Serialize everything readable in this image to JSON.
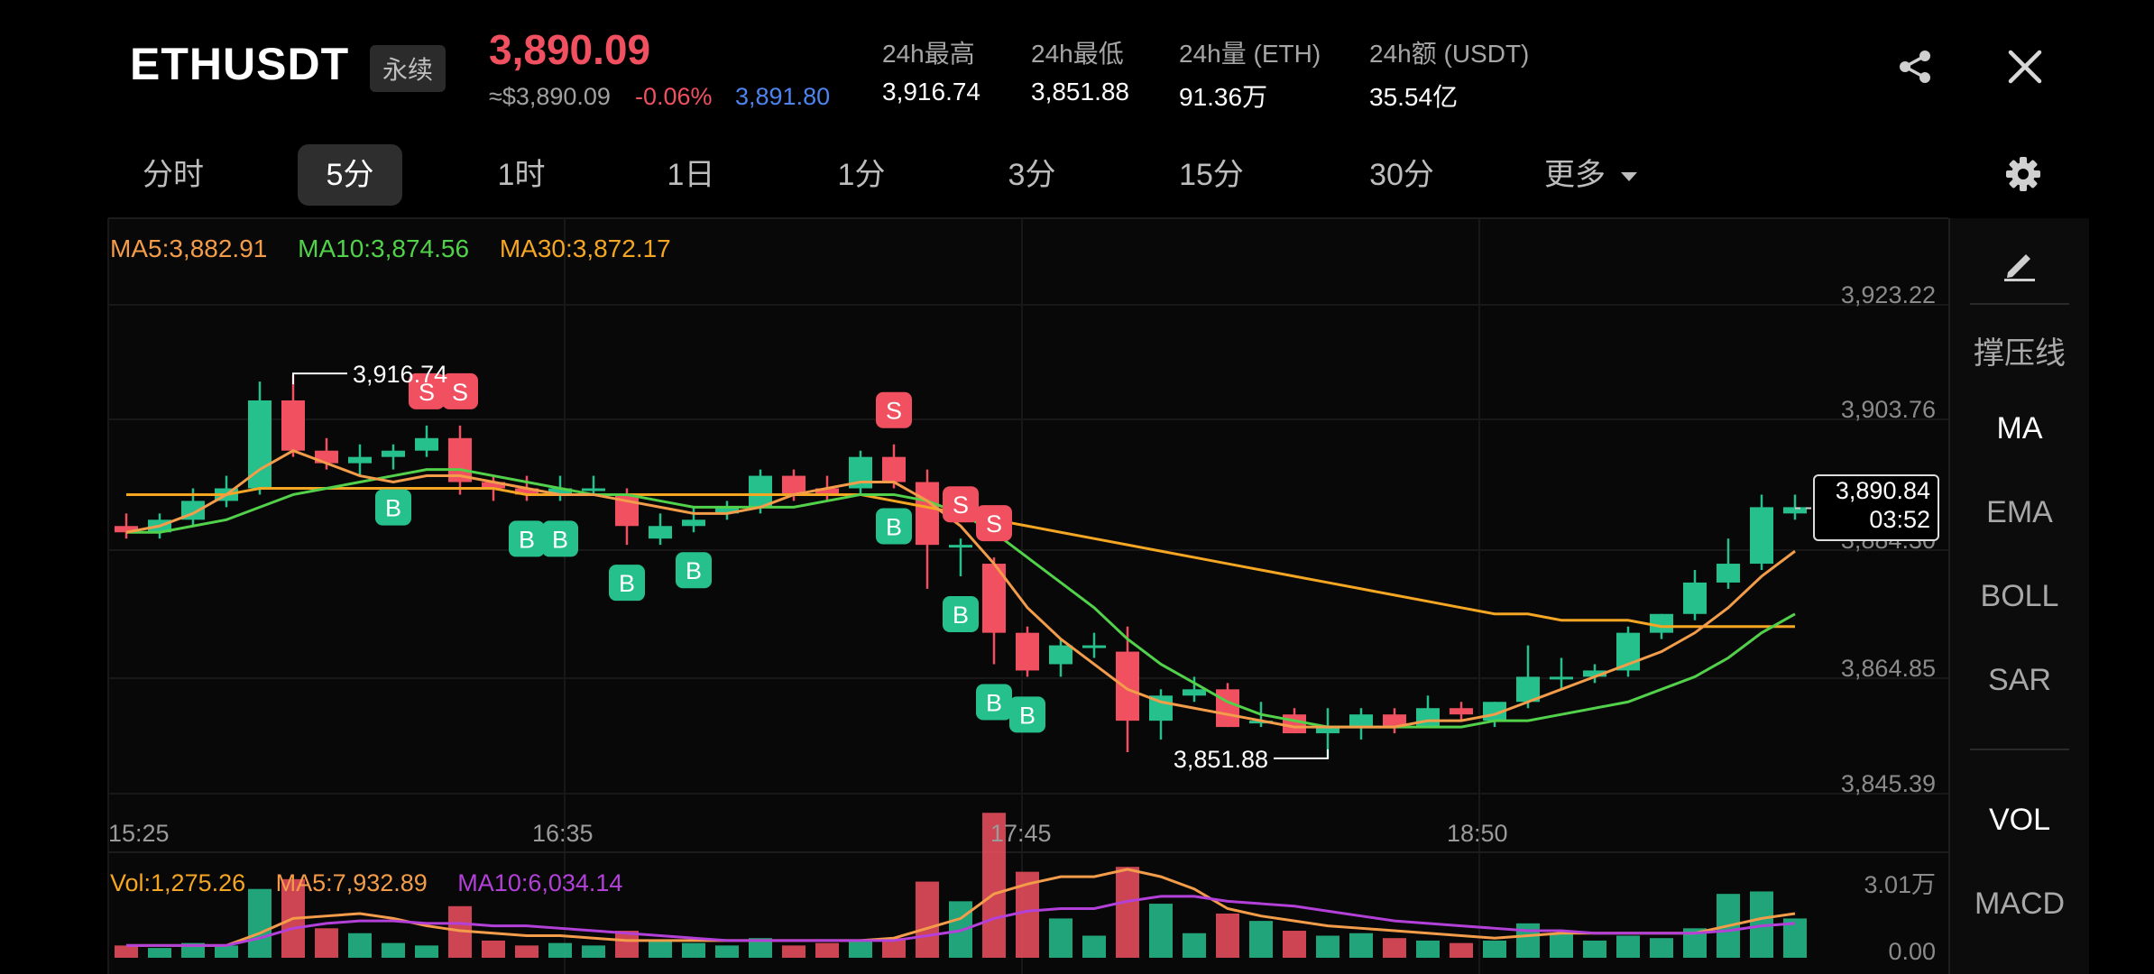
{
  "header": {
    "symbol": "ETHUSDT",
    "contract_type": "永续",
    "last_price": "3,890.09",
    "usd_equiv": "≈$3,890.09",
    "change_pct": "-0.06%",
    "mark_price": "3,891.80",
    "stats": [
      {
        "label": "24h最高",
        "value": "3,916.74"
      },
      {
        "label": "24h最低",
        "value": "3,851.88"
      },
      {
        "label": "24h量 (ETH)",
        "value": "91.36万"
      },
      {
        "label": "24h额 (USDT)",
        "value": "35.54亿"
      }
    ],
    "icons": {
      "share": "share-icon",
      "close": "close-icon"
    }
  },
  "timeframes": [
    {
      "label": "分时",
      "active": false
    },
    {
      "label": "5分",
      "active": true
    },
    {
      "label": "1时",
      "active": false
    },
    {
      "label": "1日",
      "active": false
    },
    {
      "label": "1分",
      "active": false
    },
    {
      "label": "3分",
      "active": false
    },
    {
      "label": "15分",
      "active": false
    },
    {
      "label": "30分",
      "active": false
    },
    {
      "label": "更多",
      "active": false
    }
  ],
  "indicators": {
    "ma5": "MA5:3,882.91",
    "ma10": "MA10:3,874.56",
    "ma30": "MA30:3,872.17",
    "vol": "Vol:1,275.26",
    "vol_ma5": "MA5:7,932.89",
    "vol_ma10": "MA10:6,034.14"
  },
  "side_panel": [
    "撑压线",
    "MA",
    "EMA",
    "BOLL",
    "SAR",
    "VOL",
    "MACD"
  ],
  "price_tag": {
    "price": "3,890.84",
    "countdown": "03:52"
  },
  "markers": {
    "high": "3,916.74",
    "low": "3,851.88",
    "buy": "B",
    "sell": "S"
  },
  "colors": {
    "up": "#26c08d",
    "down": "#f0505f",
    "ma5": "#f39c4a",
    "ma10": "#52d14a",
    "ma30": "#f5a623",
    "vol_ma10": "#b341d9"
  },
  "chart_data": {
    "type": "candlestick",
    "price_axis": {
      "min": 3845.39,
      "max": 3923.22,
      "ticks": [
        "3,923.22",
        "3,903.76",
        "3,884.30",
        "3,864.85",
        "3,845.39"
      ]
    },
    "time_axis": {
      "ticks": [
        "15:25",
        "16:35",
        "17:45",
        "18:50"
      ]
    },
    "volume_axis": {
      "ticks": [
        "3.01万",
        "0.00"
      ]
    },
    "candles": [
      {
        "o": 3888,
        "h": 3890,
        "l": 3886,
        "c": 3887
      },
      {
        "o": 3887,
        "h": 3890,
        "l": 3886,
        "c": 3889
      },
      {
        "o": 3889,
        "h": 3894,
        "l": 3888,
        "c": 3892
      },
      {
        "o": 3892,
        "h": 3896,
        "l": 3891,
        "c": 3894
      },
      {
        "o": 3894,
        "h": 3911,
        "l": 3893,
        "c": 3908
      },
      {
        "o": 3908,
        "h": 3912,
        "l": 3899,
        "c": 3900
      },
      {
        "o": 3900,
        "h": 3902,
        "l": 3897,
        "c": 3898
      },
      {
        "o": 3898,
        "h": 3901,
        "l": 3896,
        "c": 3899
      },
      {
        "o": 3899,
        "h": 3901,
        "l": 3897,
        "c": 3900
      },
      {
        "o": 3900,
        "h": 3904,
        "l": 3899,
        "c": 3902
      },
      {
        "o": 3902,
        "h": 3904,
        "l": 3893,
        "c": 3895
      },
      {
        "o": 3895,
        "h": 3896,
        "l": 3892,
        "c": 3894
      },
      {
        "o": 3894,
        "h": 3896,
        "l": 3892,
        "c": 3893
      },
      {
        "o": 3893,
        "h": 3896,
        "l": 3892,
        "c": 3894
      },
      {
        "o": 3894,
        "h": 3896,
        "l": 3893,
        "c": 3894
      },
      {
        "o": 3893,
        "h": 3894,
        "l": 3885,
        "c": 3888
      },
      {
        "o": 3886,
        "h": 3890,
        "l": 3885,
        "c": 3888
      },
      {
        "o": 3888,
        "h": 3891,
        "l": 3887,
        "c": 3889
      },
      {
        "o": 3890,
        "h": 3892,
        "l": 3889,
        "c": 3891
      },
      {
        "o": 3891,
        "h": 3897,
        "l": 3890,
        "c": 3896
      },
      {
        "o": 3896,
        "h": 3897,
        "l": 3892,
        "c": 3893
      },
      {
        "o": 3894,
        "h": 3896,
        "l": 3892,
        "c": 3893
      },
      {
        "o": 3894,
        "h": 3900,
        "l": 3893,
        "c": 3899
      },
      {
        "o": 3899,
        "h": 3901,
        "l": 3894,
        "c": 3895
      },
      {
        "o": 3895,
        "h": 3897,
        "l": 3878,
        "c": 3885
      },
      {
        "o": 3885,
        "h": 3886,
        "l": 3880,
        "c": 3885
      },
      {
        "o": 3882,
        "h": 3883,
        "l": 3866,
        "c": 3871
      },
      {
        "o": 3871,
        "h": 3872,
        "l": 3864,
        "c": 3865
      },
      {
        "o": 3866,
        "h": 3870,
        "l": 3864,
        "c": 3869
      },
      {
        "o": 3869,
        "h": 3871,
        "l": 3867,
        "c": 3869
      },
      {
        "o": 3868,
        "h": 3872,
        "l": 3852,
        "c": 3857
      },
      {
        "o": 3857,
        "h": 3862,
        "l": 3854,
        "c": 3861
      },
      {
        "o": 3861,
        "h": 3864,
        "l": 3860,
        "c": 3862
      },
      {
        "o": 3862,
        "h": 3863,
        "l": 3856,
        "c": 3856
      },
      {
        "o": 3857,
        "h": 3860,
        "l": 3856,
        "c": 3857
      },
      {
        "o": 3858,
        "h": 3859,
        "l": 3855,
        "c": 3855
      },
      {
        "o": 3855,
        "h": 3859,
        "l": 3851,
        "c": 3856
      },
      {
        "o": 3856,
        "h": 3859,
        "l": 3854,
        "c": 3858
      },
      {
        "o": 3858,
        "h": 3859,
        "l": 3855,
        "c": 3856
      },
      {
        "o": 3856,
        "h": 3861,
        "l": 3856,
        "c": 3859
      },
      {
        "o": 3859,
        "h": 3860,
        "l": 3857,
        "c": 3858
      },
      {
        "o": 3857,
        "h": 3860,
        "l": 3856,
        "c": 3860
      },
      {
        "o": 3860,
        "h": 3869,
        "l": 3859,
        "c": 3864
      },
      {
        "o": 3864,
        "h": 3867,
        "l": 3862,
        "c": 3864
      },
      {
        "o": 3864,
        "h": 3866,
        "l": 3863,
        "c": 3865
      },
      {
        "o": 3865,
        "h": 3872,
        "l": 3864,
        "c": 3871
      },
      {
        "o": 3871,
        "h": 3874,
        "l": 3870,
        "c": 3874
      },
      {
        "o": 3874,
        "h": 3881,
        "l": 3873,
        "c": 3879
      },
      {
        "o": 3879,
        "h": 3886,
        "l": 3878,
        "c": 3882
      },
      {
        "o": 3882,
        "h": 3893,
        "l": 3881,
        "c": 3891
      },
      {
        "o": 3890,
        "h": 3893,
        "l": 3889,
        "c": 3891
      }
    ],
    "volume": [
      0.5,
      0.4,
      0.6,
      0.5,
      2.8,
      3.2,
      1.2,
      1.0,
      0.6,
      0.5,
      2.1,
      0.7,
      0.5,
      0.6,
      0.5,
      1.1,
      0.7,
      0.6,
      0.5,
      0.8,
      0.5,
      0.6,
      0.7,
      0.8,
      3.1,
      2.3,
      5.9,
      3.5,
      1.6,
      0.9,
      3.7,
      2.2,
      1.0,
      1.8,
      1.5,
      1.1,
      0.9,
      1.0,
      0.8,
      0.7,
      0.6,
      0.7,
      1.4,
      1.0,
      0.7,
      0.9,
      0.8,
      1.2,
      2.6,
      2.7,
      1.6
    ],
    "ma5_line": [
      3887,
      3888,
      3890,
      3893,
      3897,
      3900,
      3898,
      3896,
      3895,
      3896,
      3896,
      3895,
      3894,
      3893,
      3893,
      3892,
      3891,
      3890,
      3890,
      3891,
      3893,
      3894,
      3895,
      3895,
      3892,
      3888,
      3882,
      3875,
      3870,
      3866,
      3862,
      3860,
      3859,
      3858,
      3857,
      3856,
      3856,
      3856,
      3856,
      3857,
      3857,
      3858,
      3860,
      3862,
      3864,
      3866,
      3868,
      3871,
      3875,
      3880,
      3884
    ],
    "ma10_line": [
      3887,
      3887,
      3888,
      3889,
      3891,
      3893,
      3894,
      3895,
      3896,
      3897,
      3897,
      3896,
      3895,
      3894,
      3893,
      3893,
      3892,
      3891,
      3891,
      3891,
      3891,
      3892,
      3893,
      3893,
      3892,
      3890,
      3887,
      3883,
      3879,
      3875,
      3870,
      3866,
      3863,
      3860,
      3858,
      3857,
      3856,
      3856,
      3856,
      3856,
      3856,
      3857,
      3857,
      3858,
      3859,
      3860,
      3862,
      3864,
      3867,
      3871,
      3874
    ],
    "ma30_line": [
      3893,
      3893,
      3893,
      3893,
      3894,
      3894,
      3894,
      3894,
      3894,
      3894,
      3894,
      3894,
      3893,
      3893,
      3893,
      3893,
      3893,
      3893,
      3893,
      3893,
      3893,
      3893,
      3893,
      3892,
      3891,
      3890,
      3889,
      3888,
      3887,
      3886,
      3885,
      3884,
      3883,
      3882,
      3881,
      3880,
      3879,
      3878,
      3877,
      3876,
      3875,
      3874,
      3874,
      3873,
      3873,
      3873,
      3872,
      3872,
      3872,
      3872,
      3872
    ],
    "vol_ma5_line": [
      0.5,
      0.5,
      0.5,
      0.5,
      1.0,
      1.6,
      1.7,
      1.8,
      1.6,
      1.3,
      1.1,
      1.0,
      0.9,
      0.9,
      0.8,
      0.7,
      0.7,
      0.7,
      0.7,
      0.7,
      0.7,
      0.7,
      0.7,
      0.8,
      1.2,
      1.6,
      2.6,
      3.0,
      3.3,
      3.3,
      3.6,
      3.3,
      2.8,
      2.0,
      1.7,
      1.5,
      1.3,
      1.2,
      1.1,
      1.0,
      0.9,
      0.8,
      0.9,
      1.0,
      1.0,
      1.0,
      1.0,
      1.0,
      1.3,
      1.6,
      1.8
    ],
    "vol_ma10_line": [
      0.5,
      0.5,
      0.5,
      0.5,
      0.8,
      1.2,
      1.4,
      1.5,
      1.5,
      1.4,
      1.4,
      1.3,
      1.3,
      1.2,
      1.1,
      1.0,
      0.9,
      0.8,
      0.7,
      0.7,
      0.7,
      0.7,
      0.7,
      0.7,
      0.9,
      1.1,
      1.6,
      1.9,
      2.0,
      2.0,
      2.3,
      2.5,
      2.5,
      2.3,
      2.2,
      2.1,
      1.9,
      1.7,
      1.5,
      1.4,
      1.3,
      1.2,
      1.1,
      1.1,
      1.0,
      1.0,
      1.0,
      1.0,
      1.1,
      1.3,
      1.4
    ],
    "buy_markers": [
      8,
      12,
      13,
      15,
      17,
      23,
      25,
      26,
      27
    ],
    "sell_markers": [
      9,
      10,
      23,
      25,
      26
    ]
  }
}
